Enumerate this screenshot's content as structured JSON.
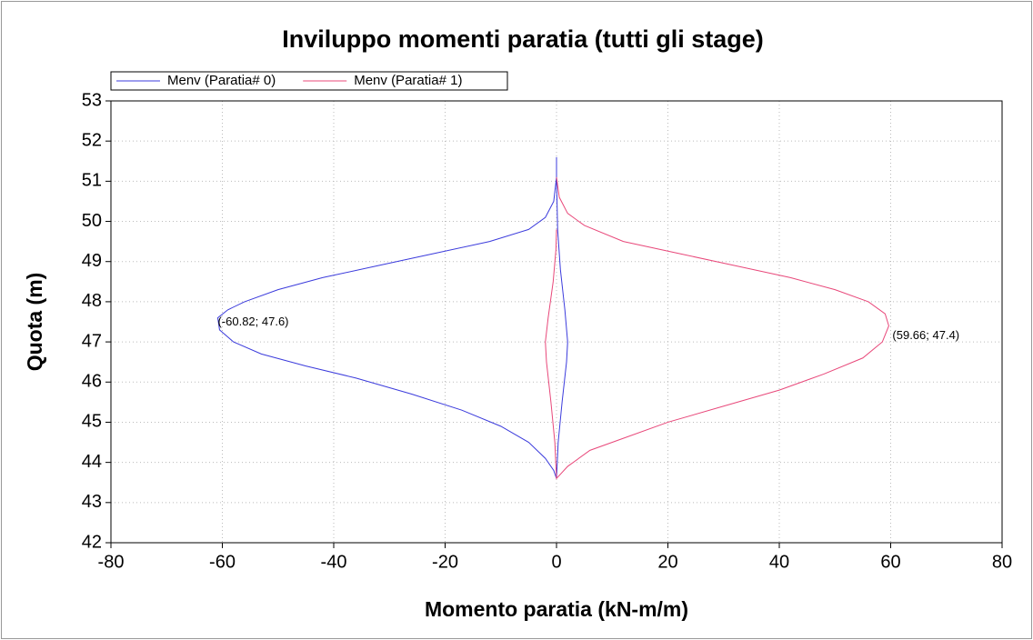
{
  "chart_data": {
    "type": "line",
    "title": "Inviluppo momenti paratia (tutti gli stage)",
    "xlabel": "Momento paratia (kN-m/m)",
    "ylabel": "Quota (m)",
    "xlim": [
      -80,
      80
    ],
    "ylim": [
      42,
      53
    ],
    "xticks": [
      -80,
      -60,
      -40,
      -20,
      0,
      20,
      40,
      60,
      80
    ],
    "yticks": [
      42,
      43,
      44,
      45,
      46,
      47,
      48,
      49,
      50,
      51,
      52,
      53
    ],
    "grid": true,
    "legend": "top-left",
    "series": [
      {
        "name": "Menv (Paratia# 0)",
        "color": "#3b3bdc",
        "x": [
          0,
          0,
          -0.5,
          -2,
          -5,
          -12,
          -22,
          -32,
          -42,
          -50,
          -56,
          -59,
          -60.82,
          -60.5,
          -58,
          -53,
          -45,
          -36,
          -26,
          -17,
          -10,
          -5,
          -2,
          -0.5,
          0,
          0.3,
          1,
          1.8,
          2,
          1.5,
          0.7,
          0.2,
          0
        ],
        "values": [
          51.6,
          51.1,
          50.5,
          50.1,
          49.8,
          49.5,
          49.2,
          48.9,
          48.6,
          48.3,
          48.0,
          47.8,
          47.6,
          47.3,
          47.0,
          46.7,
          46.4,
          46.1,
          45.7,
          45.3,
          44.9,
          44.5,
          44.1,
          43.8,
          43.6,
          44.5,
          45.5,
          46.5,
          47,
          47.8,
          48.8,
          49.8,
          51.1
        ]
      },
      {
        "name": "Menv (Paratia# 1)",
        "color": "#e8487a",
        "x": [
          0,
          0.5,
          2,
          5,
          12,
          22,
          32,
          42,
          50,
          56,
          59,
          59.66,
          58.5,
          55,
          48,
          40,
          30,
          20,
          12,
          6,
          2,
          0,
          -0.3,
          -1,
          -1.8,
          -2,
          -1.5,
          -0.6,
          -0.1,
          0
        ],
        "values": [
          51.1,
          50.6,
          50.2,
          49.9,
          49.5,
          49.2,
          48.9,
          48.6,
          48.3,
          48.0,
          47.7,
          47.4,
          47.0,
          46.6,
          46.2,
          45.8,
          45.4,
          45.0,
          44.6,
          44.3,
          43.9,
          43.6,
          44.5,
          45.5,
          46.5,
          47,
          47.6,
          48.5,
          49.3,
          49.8
        ]
      }
    ],
    "annotations": [
      {
        "text": "(-60.82; 47.6)",
        "x": -60.82,
        "y": 47.6
      },
      {
        "text": "(59.66; 47.4)",
        "x": 59.66,
        "y": 47.4
      }
    ]
  }
}
